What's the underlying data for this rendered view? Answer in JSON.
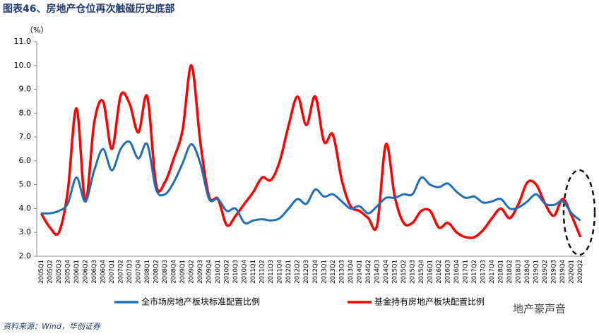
{
  "chart_data": {
    "type": "line",
    "title": "图表46、房地产仓位再次触碰历史底部",
    "y_label": "（%）",
    "source": "资料来源：Wind，华创证券",
    "watermark": "地产豪声音",
    "categories": [
      "2005Q1",
      "2005Q2",
      "2005Q3",
      "2005Q4",
      "2006Q1",
      "2006Q2",
      "2006Q3",
      "2006Q4",
      "2007Q1",
      "2007Q2",
      "2007Q3",
      "2007Q4",
      "2008Q1",
      "2008Q2",
      "2008Q3",
      "2008Q4",
      "2009Q1",
      "2009Q2",
      "2009Q3",
      "2009Q4",
      "2010Q1",
      "2010Q2",
      "2010Q3",
      "2010Q4",
      "2011Q1",
      "2011Q2",
      "2011Q3",
      "2011Q4",
      "2012Q1",
      "2012Q2",
      "2012Q3",
      "2012Q4",
      "2013Q1",
      "2013Q2",
      "2013Q3",
      "2013Q4",
      "2014Q1",
      "2014Q2",
      "2014Q3",
      "2014Q4",
      "2015Q1",
      "2015Q2",
      "2015Q3",
      "2015Q4",
      "2016Q1",
      "2016Q2",
      "2016Q3",
      "2016Q4",
      "2017Q1",
      "2017Q2",
      "2017Q3",
      "2017Q4",
      "2018Q1",
      "2018Q2",
      "2018Q3",
      "2018Q4",
      "2019Q1",
      "2019Q2",
      "2019Q3",
      "2019Q4",
      "2020Q1",
      "2020Q2"
    ],
    "series": [
      {
        "name": "全市场房地产板块标准配置比例",
        "color": "#1f6fb8",
        "values": [
          3.8,
          3.8,
          3.9,
          4.2,
          5.3,
          4.3,
          5.6,
          6.5,
          5.6,
          6.5,
          6.8,
          6.1,
          6.7,
          4.8,
          4.6,
          5.1,
          5.9,
          6.7,
          5.9,
          4.4,
          4.4,
          3.9,
          4.0,
          3.4,
          3.5,
          3.55,
          3.5,
          3.6,
          4.0,
          4.4,
          4.2,
          4.8,
          4.5,
          4.6,
          4.3,
          4.0,
          4.1,
          3.8,
          4.1,
          4.45,
          4.45,
          4.6,
          4.6,
          5.3,
          5.0,
          4.9,
          5.05,
          4.7,
          4.45,
          4.5,
          4.25,
          4.3,
          4.4,
          4.0,
          4.05,
          4.3,
          4.6,
          4.2,
          4.15,
          4.3,
          3.8,
          3.5
        ]
      },
      {
        "name": "基金持有房地产板块配置比例",
        "color": "#ff0000",
        "values": [
          3.8,
          3.2,
          3.0,
          4.7,
          8.2,
          4.3,
          7.6,
          8.5,
          6.5,
          8.75,
          8.4,
          7.2,
          8.7,
          5.0,
          5.1,
          6.1,
          7.3,
          10.0,
          6.8,
          4.5,
          4.4,
          3.3,
          3.7,
          4.2,
          4.7,
          5.3,
          5.2,
          6.0,
          7.5,
          8.7,
          7.5,
          8.7,
          6.8,
          7.1,
          5.2,
          4.1,
          3.9,
          3.6,
          3.3,
          6.7,
          4.5,
          3.4,
          3.4,
          3.9,
          3.9,
          3.2,
          3.4,
          3.0,
          2.8,
          2.8,
          3.1,
          3.6,
          4.0,
          3.6,
          4.2,
          5.1,
          5.0,
          4.2,
          3.7,
          4.4,
          3.7,
          2.8
        ]
      }
    ],
    "ylim": [
      2,
      11
    ],
    "yticks": [
      {
        "value": 2,
        "label": "2.0"
      },
      {
        "value": 3,
        "label": "3.0"
      },
      {
        "value": 4,
        "label": "4.0"
      },
      {
        "value": 5,
        "label": "5.0"
      },
      {
        "value": 6,
        "label": "6.0"
      },
      {
        "value": 7,
        "label": "7.0"
      },
      {
        "value": 8,
        "label": "8.0"
      },
      {
        "value": 9,
        "label": "9.0"
      },
      {
        "value": 10,
        "label": "10.0"
      },
      {
        "value": 11,
        "label": "11.0"
      }
    ],
    "grid": false,
    "legend": "bottom"
  }
}
